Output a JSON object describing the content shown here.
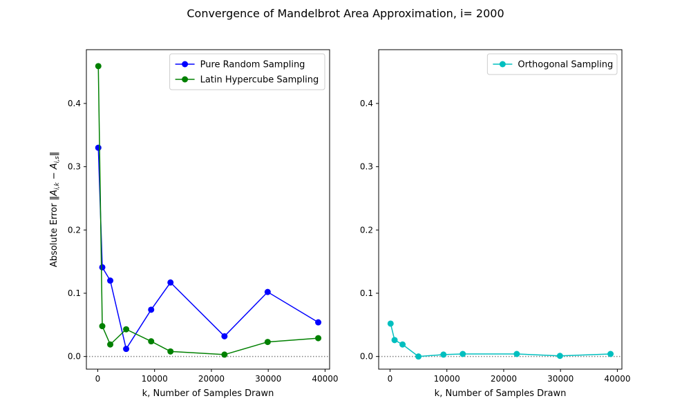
{
  "title": "Convergence of Mandelbrot Area Approximation, i= 2000",
  "chart_data": [
    {
      "type": "line",
      "xlabel": "k, Number of Samples Drawn",
      "ylabel": "Absolute Error ‖A_{i,k} − A_{i,s}‖",
      "xlim": [
        -2000,
        40800
      ],
      "ylim": [
        -0.02,
        0.485
      ],
      "xticks": [
        0,
        10000,
        20000,
        30000,
        40000
      ],
      "yticks": [
        0.0,
        0.1,
        0.2,
        0.3,
        0.4
      ],
      "reference_line": {
        "y": 0,
        "style": "dotted",
        "color": "#808080"
      },
      "legend": "top-right",
      "x": [
        100,
        800,
        2200,
        5000,
        9400,
        12800,
        22300,
        29900,
        38800
      ],
      "series": [
        {
          "name": "Pure Random Sampling",
          "color": "#0000ff",
          "values": [
            0.33,
            0.141,
            0.12,
            0.012,
            0.074,
            0.117,
            0.032,
            0.102,
            0.054
          ]
        },
        {
          "name": "Latin Hypercube Sampling",
          "color": "#008000",
          "values": [
            0.459,
            0.048,
            0.019,
            0.043,
            0.024,
            0.008,
            0.003,
            0.023,
            0.029
          ]
        }
      ]
    },
    {
      "type": "line",
      "xlabel": "k, Number of Samples Drawn",
      "ylabel": "",
      "xlim": [
        -2000,
        40800
      ],
      "ylim": [
        -0.02,
        0.485
      ],
      "xticks": [
        0,
        10000,
        20000,
        30000,
        40000
      ],
      "yticks": [
        0.0,
        0.1,
        0.2,
        0.3,
        0.4
      ],
      "reference_line": {
        "y": 0,
        "style": "dotted",
        "color": "#808080"
      },
      "legend": "top-right",
      "x": [
        100,
        800,
        2200,
        5000,
        9400,
        12800,
        22300,
        29900,
        38800
      ],
      "series": [
        {
          "name": "Orthogonal Sampling",
          "color": "#00bfbf",
          "values": [
            0.052,
            0.026,
            0.019,
            0.0,
            0.003,
            0.004,
            0.004,
            0.001,
            0.004
          ]
        }
      ]
    }
  ]
}
